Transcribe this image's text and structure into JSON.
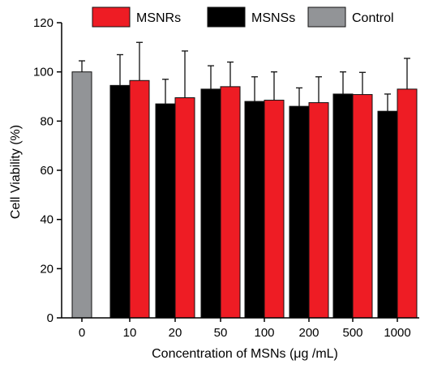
{
  "chart_data": {
    "type": "bar",
    "title": "",
    "xlabel": "Concentration of MSNs (μg /mL)",
    "ylabel": "Cell Viability (%)",
    "ylim": [
      0,
      120
    ],
    "yticks": [
      "0",
      "20",
      "40",
      "60",
      "80",
      "100",
      "120"
    ],
    "categories": [
      "0",
      "10",
      "20",
      "50",
      "100",
      "200",
      "500",
      "1000"
    ],
    "series": [
      {
        "name": "MSNRs",
        "color": "#ee1c24",
        "values": [
          null,
          96.5,
          89.5,
          94.0,
          88.5,
          87.5,
          90.8,
          93.0
        ],
        "errors": [
          null,
          15.5,
          19.0,
          10.0,
          11.5,
          10.5,
          9.0,
          12.5
        ]
      },
      {
        "name": "MSNSs",
        "color": "#000000",
        "values": [
          null,
          94.5,
          87.0,
          93.0,
          88.0,
          86.0,
          91.0,
          84.0
        ],
        "errors": [
          null,
          12.5,
          10.0,
          9.5,
          10.0,
          7.5,
          9.0,
          7.0
        ]
      },
      {
        "name": "Control",
        "color": "#929497",
        "values": [
          100.0,
          null,
          null,
          null,
          null,
          null,
          null,
          null
        ],
        "errors": [
          4.5,
          null,
          null,
          null,
          null,
          null,
          null,
          null
        ]
      }
    ],
    "legend_position": "top"
  }
}
